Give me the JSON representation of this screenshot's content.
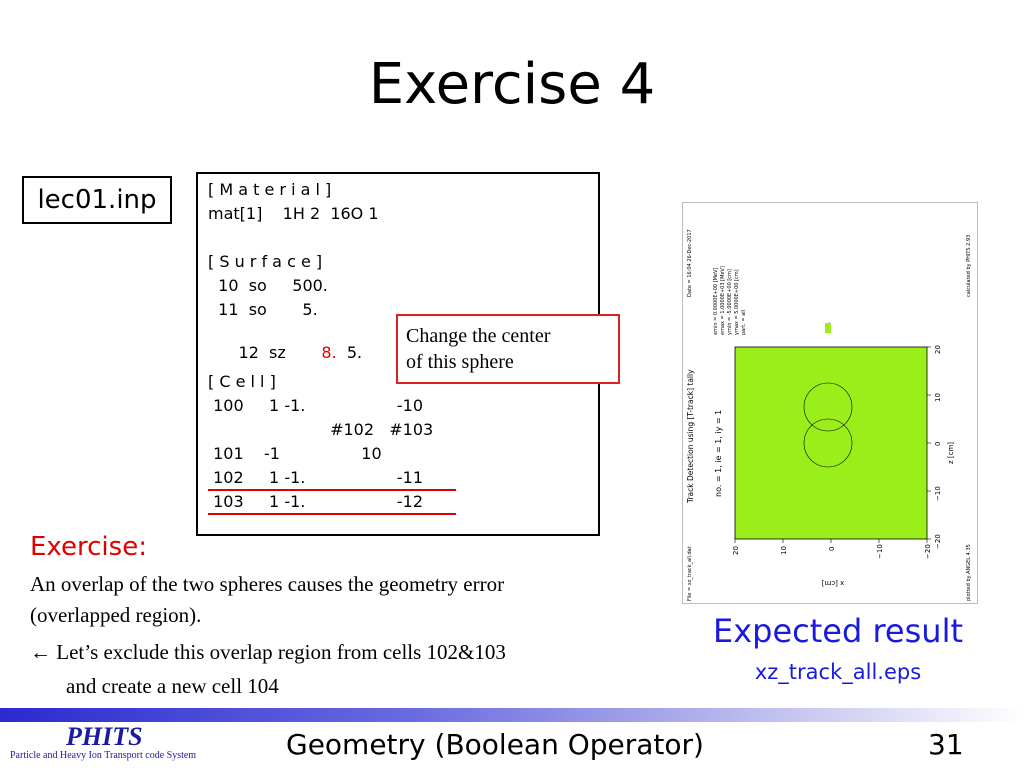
{
  "slide": {
    "title": "Exercise 4",
    "filename": "lec01.inp"
  },
  "code": {
    "lines": {
      "l0": "[ M a t e r i a l ]",
      "l1": "mat[1]    1H 2  16O 1",
      "l2": "[ S u r f a c e ]",
      "l3a": "  10  so     500.",
      "l4a": "  11  so       5.",
      "l5a": "  12  sz       ",
      "l5red": "8.",
      "l5b": "  5.",
      "l6": "[ C e l l ]",
      "l7": " 100     1 -1.                  -10",
      "l8": "                        #102   #103",
      "l9": " 101    -1                10",
      "l10": " 102     1 -1.                  -11",
      "l11": " 103     1 -1.                  -12"
    },
    "callout_line1": "Change the center",
    "callout_line2": "of this sphere"
  },
  "exercise": {
    "heading": "Exercise:",
    "line1": "An overlap of the two spheres causes the geometry error",
    "line2": "(overlapped region).",
    "line3": "← Let’s exclude this overlap region from cells 102&103",
    "line4": "and create a new cell 104"
  },
  "plot": {
    "title": "Track Detection using [T-track] tally",
    "subtitle": "no. =  1,  ie =  1,  iy =  1",
    "date": "Date = 16:04 26-Dec-2017",
    "calc": "calculated by PHITS 2.93",
    "info": {
      "emin": "emin  =  0.0000E+00 [MeV]",
      "emax": "emax  =  1.0000E+03 [MeV]",
      "ymin": "ymin  = -5.0000E+00 [cm]",
      "ymax": "ymax  =  5.0000E+00 [cm]",
      "part": "part.  = all"
    },
    "xlabel": "x [cm]",
    "zlabel": "z [cm]",
    "file": "File = xz_track_all.dat",
    "plotted": "plotted by ANGEL 4.35",
    "legend_value": "1",
    "x_ticks": [
      "20",
      "10",
      "0",
      "−10",
      "−20"
    ],
    "z_ticks": [
      "20",
      "10",
      "0",
      "−10",
      "−20"
    ],
    "colors": {
      "fill": "#9aee1a",
      "line": "#000000"
    }
  },
  "expected": {
    "caption": "Expected result",
    "file": "xz_track_all.eps"
  },
  "footer": {
    "logo": "PHITS",
    "logo_subtitle": "Particle and Heavy Ion Transport code System",
    "title": "Geometry (Boolean Operator)",
    "page": "31"
  }
}
